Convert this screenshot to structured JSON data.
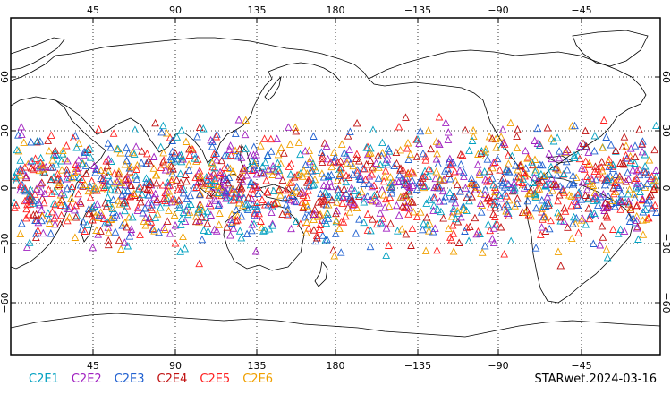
{
  "map": {
    "lon_ticks": [
      "45",
      "90",
      "135",
      "180",
      "−135",
      "−90",
      "−45"
    ],
    "lat_ticks": [
      "60",
      "30",
      "0",
      "−30",
      "−60"
    ],
    "series": [
      {
        "name": "C2E1",
        "color": "#00a0c0"
      },
      {
        "name": "C2E2",
        "color": "#a020c0"
      },
      {
        "name": "C2E3",
        "color": "#2060d0"
      },
      {
        "name": "C2E4",
        "color": "#c01010"
      },
      {
        "name": "C2E5",
        "color": "#ff2020"
      },
      {
        "name": "C2E6",
        "color": "#f0a000"
      }
    ],
    "marker": "triangle-outline",
    "lat_range": [
      -45,
      45
    ]
  },
  "legend": {
    "items": [
      "C2E1",
      "C2E2",
      "C2E3",
      "C2E4",
      "C2E5",
      "C2E6"
    ]
  },
  "source_label": "STARwet.2024-03-16"
}
